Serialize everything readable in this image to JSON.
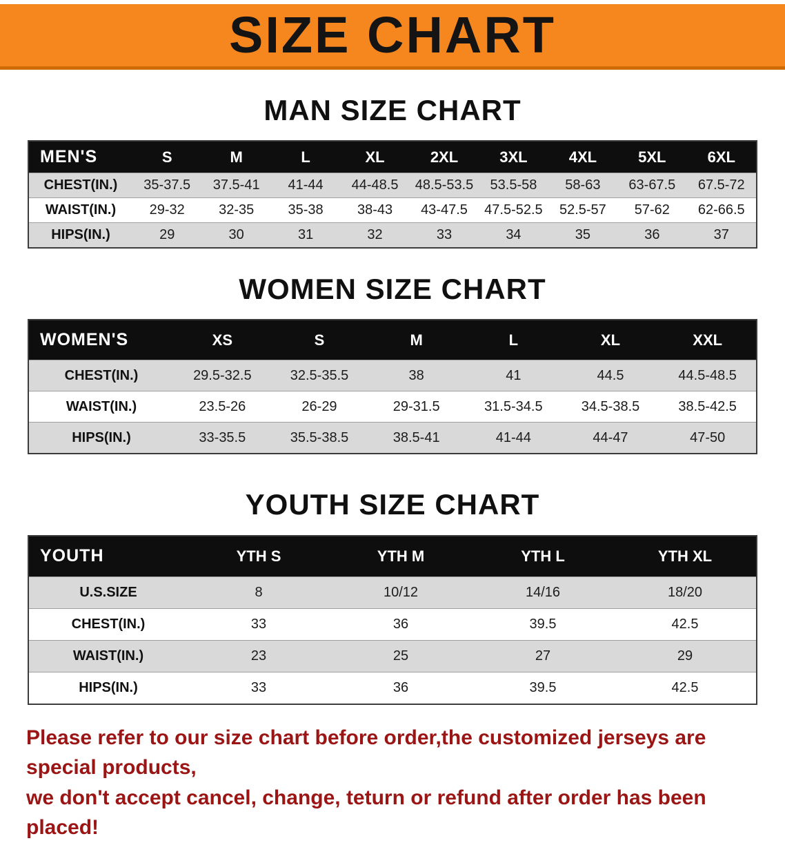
{
  "banner": {
    "title": "SIZE CHART",
    "bg_color": "#f6871f"
  },
  "sections": [
    {
      "heading": "MAN SIZE CHART",
      "table": {
        "corner": "MEN'S",
        "sizes": [
          "S",
          "M",
          "L",
          "XL",
          "2XL",
          "3XL",
          "4XL",
          "5XL",
          "6XL"
        ],
        "rows": [
          {
            "label": "CHEST(IN.)",
            "values": [
              "35-37.5",
              "37.5-41",
              "41-44",
              "44-48.5",
              "48.5-53.5",
              "53.5-58",
              "58-63",
              "63-67.5",
              "67.5-72"
            ]
          },
          {
            "label": "WAIST(IN.)",
            "values": [
              "29-32",
              "32-35",
              "35-38",
              "38-43",
              "43-47.5",
              "47.5-52.5",
              "52.5-57",
              "57-62",
              "62-66.5"
            ]
          },
          {
            "label": "HIPS(IN.)",
            "values": [
              "29",
              "30",
              "31",
              "32",
              "33",
              "34",
              "35",
              "36",
              "37"
            ]
          }
        ]
      }
    },
    {
      "heading": "WOMEN SIZE CHART",
      "table": {
        "corner": "WOMEN'S",
        "sizes": [
          "XS",
          "S",
          "M",
          "L",
          "XL",
          "XXL"
        ],
        "rows": [
          {
            "label": "CHEST(IN.)",
            "values": [
              "29.5-32.5",
              "32.5-35.5",
              "38",
              "41",
              "44.5",
              "44.5-48.5"
            ]
          },
          {
            "label": "WAIST(IN.)",
            "values": [
              "23.5-26",
              "26-29",
              "29-31.5",
              "31.5-34.5",
              "34.5-38.5",
              "38.5-42.5"
            ]
          },
          {
            "label": "HIPS(IN.)",
            "values": [
              "33-35.5",
              "35.5-38.5",
              "38.5-41",
              "41-44",
              "44-47",
              "47-50"
            ]
          }
        ]
      }
    },
    {
      "heading": "YOUTH SIZE CHART",
      "table": {
        "corner": "YOUTH",
        "sizes": [
          "YTH S",
          "YTH M",
          "YTH L",
          "YTH XL"
        ],
        "rows": [
          {
            "label": "U.S.SIZE",
            "values": [
              "8",
              "10/12",
              "14/16",
              "18/20"
            ]
          },
          {
            "label": "CHEST(IN.)",
            "values": [
              "33",
              "36",
              "39.5",
              "42.5"
            ]
          },
          {
            "label": "WAIST(IN.)",
            "values": [
              "23",
              "25",
              "27",
              "29"
            ]
          },
          {
            "label": "HIPS(IN.)",
            "values": [
              "33",
              "36",
              "39.5",
              "42.5"
            ]
          }
        ]
      }
    }
  ],
  "footer": {
    "line1": "Please refer to our size chart before order,the customized jerseys are special products,",
    "line2": "we don't accept cancel, change, teturn or refund after order has been placed!",
    "text_color": "#9b1515"
  }
}
